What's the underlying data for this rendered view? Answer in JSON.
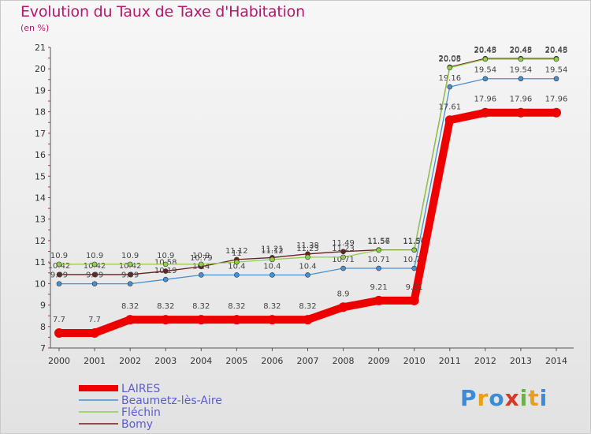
{
  "title": "Evolution du Taux de Taxe d'Habitation",
  "subtitle": "(en %)",
  "logo": {
    "letters": [
      "P",
      "r",
      "o",
      "x",
      "i",
      "t",
      "i"
    ],
    "colors": [
      "#3a8bd8",
      "#e8a019",
      "#3a8bd8",
      "#d23a2a",
      "#6ab04c",
      "#e8a019",
      "#3a8bd8"
    ]
  },
  "chart_data": {
    "type": "line",
    "x": [
      "2000",
      "2001",
      "2002",
      "2003",
      "2004",
      "2005",
      "2006",
      "2007",
      "2008",
      "2009",
      "2010",
      "2011",
      "2012",
      "2013",
      "2014"
    ],
    "ylim": [
      7,
      21
    ],
    "yticks": [
      7,
      8,
      9,
      10,
      11,
      12,
      13,
      14,
      15,
      16,
      17,
      18,
      19,
      20,
      21
    ],
    "grid": false,
    "legend": "bottom-left",
    "series": [
      {
        "name": "Bomy",
        "color": "#6b1f1f",
        "values": [
          10.42,
          10.42,
          10.42,
          10.58,
          10.79,
          11.12,
          11.21,
          11.38,
          11.49,
          11.57,
          11.57,
          20.08,
          20.48,
          20.48,
          20.48
        ],
        "labels": [
          "10.42",
          "10.42",
          "10.42",
          "10.58",
          "10.79",
          "11.12",
          "11.21",
          "11.38",
          "11.49",
          "11.57",
          "11.57",
          "20.08",
          "20.48",
          "20.48",
          "20.48"
        ]
      },
      {
        "name": "Beaumetz-lès-Aire",
        "color": "#4a8fd0",
        "values": [
          9.99,
          9.99,
          9.99,
          10.19,
          10.4,
          10.4,
          10.4,
          10.4,
          10.71,
          10.71,
          10.71,
          19.16,
          19.54,
          19.54,
          19.54
        ],
        "labels": [
          "9.99",
          "9.99",
          "9.99",
          "10.19",
          "10.4",
          "10.4",
          "10.4",
          "10.4",
          "10.71",
          "10.71",
          "10.71",
          "19.16",
          "19.54",
          "19.54",
          "19.54"
        ]
      },
      {
        "name": "Fléchin",
        "color": "#8fd04a",
        "values": [
          10.9,
          10.9,
          10.9,
          10.9,
          10.9,
          11.0,
          11.12,
          11.23,
          11.23,
          11.56,
          11.56,
          20.05,
          20.45,
          20.45,
          20.45
        ],
        "labels": [
          "10.9",
          "10.9",
          "10.9",
          "10.9",
          "10.9",
          "11",
          "11.12",
          "11.23",
          "11.23",
          "11.56",
          "11.56",
          "20.05",
          "20.45",
          "20.45",
          "20.45"
        ]
      },
      {
        "name": "LAIRES",
        "color": "#ee0000",
        "values": [
          7.7,
          7.7,
          8.32,
          8.32,
          8.32,
          8.32,
          8.32,
          8.32,
          8.9,
          9.21,
          9.21,
          17.61,
          17.96,
          17.96,
          17.96
        ],
        "labels": [
          "7.7",
          "7.7",
          "8.32",
          "8.32",
          "8.32",
          "8.32",
          "8.32",
          "8.32",
          "8.9",
          "9.21",
          "9.21",
          "17.61",
          "17.96",
          "17.96",
          "17.96"
        ]
      }
    ],
    "legend_order": [
      "LAIRES",
      "Beaumetz-lès-Aire",
      "Fléchin",
      "Bomy"
    ]
  }
}
